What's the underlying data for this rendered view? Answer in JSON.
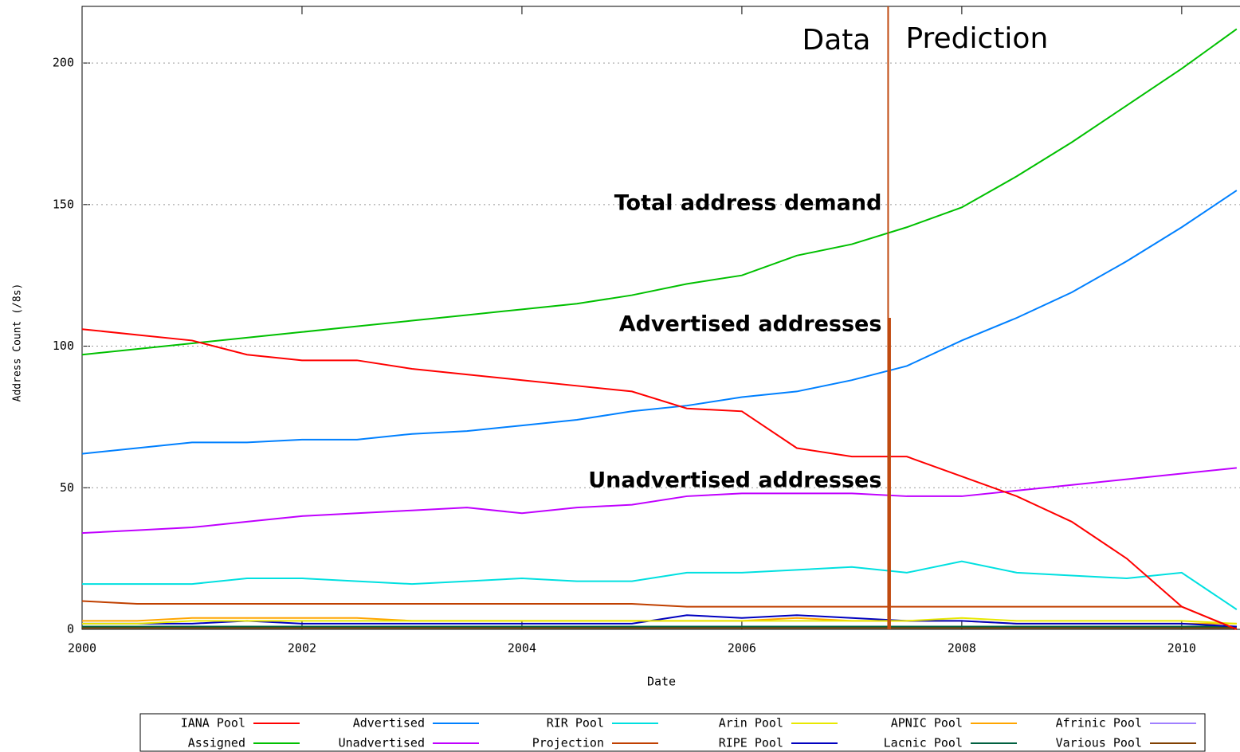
{
  "chart_data": {
    "type": "line",
    "x_label": "Date",
    "y_label": "Address Count (/8s)",
    "x": [
      2000,
      2000.5,
      2001,
      2001.5,
      2002,
      2002.5,
      2003,
      2003.5,
      2004,
      2004.5,
      2005,
      2005.5,
      2006,
      2006.5,
      2007,
      2007.5,
      2008,
      2008.5,
      2009,
      2009.5,
      2010,
      2010.5
    ],
    "xlim": [
      2000,
      2010.53
    ],
    "xticks": [
      2000,
      2002,
      2004,
      2006,
      2008,
      2010
    ],
    "ylim": [
      0,
      220
    ],
    "yticks": [
      0,
      50,
      100,
      150,
      200
    ],
    "grid": true,
    "divider_x": 2007.33,
    "divider_color": "#c04a10",
    "region_labels": [
      "Data",
      "Prediction"
    ],
    "annotations": [
      "Total address demand",
      "Advertised addresses",
      "Unadvertised addresses"
    ],
    "series": [
      {
        "name": "IANA Pool",
        "color": "#ff0000",
        "values": [
          106,
          104,
          102,
          97,
          95,
          95,
          92,
          90,
          88,
          86,
          84,
          78,
          77,
          64,
          61,
          61,
          54,
          47,
          38,
          25,
          8,
          0
        ]
      },
      {
        "name": "Assigned",
        "color": "#00c000",
        "values": [
          97,
          99,
          101,
          103,
          105,
          107,
          109,
          111,
          113,
          115,
          118,
          122,
          125,
          132,
          136,
          142,
          149,
          160,
          172,
          185,
          198,
          212
        ]
      },
      {
        "name": "Advertised",
        "color": "#0080ff",
        "values": [
          62,
          64,
          66,
          66,
          67,
          67,
          69,
          70,
          72,
          74,
          77,
          79,
          82,
          84,
          88,
          93,
          102,
          110,
          119,
          130,
          142,
          155
        ]
      },
      {
        "name": "Unadvertised",
        "color": "#c000ff",
        "values": [
          34,
          35,
          36,
          38,
          40,
          41,
          42,
          43,
          41,
          43,
          44,
          47,
          48,
          48,
          48,
          47,
          47,
          49,
          51,
          53,
          55,
          57
        ]
      },
      {
        "name": "RIR Pool",
        "color": "#00e0e0",
        "values": [
          16,
          16,
          16,
          18,
          18,
          17,
          16,
          17,
          18,
          17,
          17,
          20,
          20,
          21,
          22,
          20,
          24,
          20,
          19,
          18,
          20,
          7
        ]
      },
      {
        "name": "Projection",
        "color": "#c04000",
        "values": [
          10,
          9,
          9,
          9,
          9,
          9,
          9,
          9,
          9,
          9,
          9,
          8,
          8,
          8,
          8,
          8,
          8,
          8,
          8,
          8,
          8,
          0
        ]
      },
      {
        "name": "Arin Pool",
        "color": "#e8e800",
        "values": [
          2,
          2,
          3,
          3,
          3,
          3,
          3,
          3,
          3,
          3,
          3,
          3,
          3,
          3,
          3,
          3,
          4,
          3,
          3,
          3,
          3,
          2
        ]
      },
      {
        "name": "RIPE Pool",
        "color": "#0000c0",
        "values": [
          2,
          2,
          2,
          3,
          2,
          2,
          2,
          2,
          2,
          2,
          2,
          5,
          4,
          5,
          4,
          3,
          3,
          2,
          2,
          2,
          2,
          1
        ]
      },
      {
        "name": "APNIC Pool",
        "color": "#ffa500",
        "values": [
          3,
          3,
          4,
          4,
          4,
          4,
          3,
          3,
          3,
          3,
          3,
          3,
          3,
          4,
          3,
          3,
          3,
          2,
          2,
          2,
          2,
          2
        ]
      },
      {
        "name": "Lacnic Pool",
        "color": "#006040",
        "values": [
          1,
          1,
          1,
          1,
          1,
          1,
          1,
          1,
          1,
          1,
          1,
          1,
          1,
          1,
          1,
          1,
          1,
          1,
          1,
          1,
          1,
          1
        ]
      },
      {
        "name": "Afrinic Pool",
        "color": "#a080ff",
        "values": [
          1,
          1,
          1,
          1,
          1,
          1,
          1,
          1,
          1,
          1,
          1,
          1,
          1,
          1,
          1,
          1,
          1,
          1,
          1,
          1,
          1,
          1
        ]
      },
      {
        "name": "Various Pool",
        "color": "#804000",
        "values": [
          0.5,
          0.5,
          0.5,
          0.5,
          0.5,
          0.5,
          0.5,
          0.5,
          0.5,
          0.5,
          0.5,
          0.5,
          0.5,
          0.5,
          0.5,
          0.5,
          0.5,
          0.5,
          0.5,
          0.5,
          0.5,
          0.5
        ]
      }
    ]
  }
}
